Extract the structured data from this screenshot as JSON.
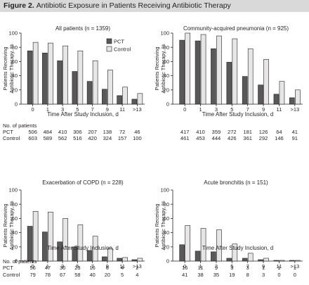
{
  "figure": {
    "label": "Figure 2.",
    "title": "Antibiotic Exposure in Patients Receiving Antibiotic Therapy"
  },
  "colors": {
    "pct": "#595959",
    "control": "#e6e6e6",
    "axis": "#231f20",
    "title_bar": "#d9d9d9"
  },
  "chart_data": [
    {
      "type": "bar",
      "title": "All patients (n = 1359)",
      "ylabel": "Patients Receiving Antibiotic Therapy, %",
      "xlabel": "Time After Study Inclusion, d",
      "categories": [
        "0",
        "1",
        "3",
        "5",
        "7",
        "9",
        "11",
        ">13"
      ],
      "ylim": [
        0,
        100
      ],
      "yticks": [
        "0",
        "20",
        "40",
        "60",
        "80",
        "100"
      ],
      "legend": {
        "placement": "top-right",
        "entries": [
          "PCT",
          "Control"
        ]
      },
      "series": [
        {
          "name": "PCT",
          "values": [
            75,
            72,
            61,
            46,
            32,
            21,
            12,
            7
          ]
        },
        {
          "name": "Control",
          "values": [
            87,
            86,
            82,
            75,
            61,
            48,
            24,
            15
          ]
        }
      ],
      "patients_label": "No. of patients",
      "patients": [
        {
          "group": "PCT",
          "counts": [
            "506",
            "484",
            "410",
            "306",
            "207",
            "138",
            "72",
            "46"
          ]
        },
        {
          "group": "Control",
          "counts": [
            "603",
            "589",
            "562",
            "516",
            "420",
            "324",
            "157",
            "100"
          ]
        }
      ]
    },
    {
      "type": "bar",
      "title": "Community-acquired pneumonia (n = 925)",
      "ylabel": "Patients Receiving Antibiotic Therapy, %",
      "xlabel": "Time After Study Inclusion, d",
      "categories": [
        "0",
        "1",
        "3",
        "5",
        "7",
        "9",
        "11",
        ">13"
      ],
      "ylim": [
        0,
        100
      ],
      "yticks": [
        "0",
        "20",
        "40",
        "60",
        "80",
        "100"
      ],
      "series": [
        {
          "name": "PCT",
          "values": [
            90,
            89,
            78,
            59,
            39,
            27,
            14,
            9
          ]
        },
        {
          "name": "Control",
          "values": [
            100,
            98,
            96,
            92,
            78,
            63,
            32,
            20
          ]
        }
      ],
      "patients_label": "",
      "patients": [
        {
          "group": "PCT",
          "counts": [
            "417",
            "410",
            "359",
            "272",
            "181",
            "126",
            "64",
            "41"
          ]
        },
        {
          "group": "Control",
          "counts": [
            "461",
            "453",
            "444",
            "426",
            "361",
            "292",
            "146",
            "91"
          ]
        }
      ]
    },
    {
      "type": "bar",
      "title": "Exacerbation of COPD (n = 228)",
      "ylabel": "Patients Receiving Antibiotic Therapy, %",
      "xlabel": "Time After Study Inclusion, d",
      "categories": [
        "0",
        "1",
        "3",
        "5",
        "7",
        "9",
        "11",
        ">13"
      ],
      "ylim": [
        0,
        100
      ],
      "yticks": [
        "0",
        "20",
        "40",
        "60",
        "80",
        "100"
      ],
      "series": [
        {
          "name": "PCT",
          "values": [
            49,
            41,
            27,
            20,
            15,
            6,
            4,
            2
          ]
        },
        {
          "name": "Control",
          "values": [
            70,
            69,
            60,
            51,
            35,
            18,
            5,
            4
          ]
        }
      ],
      "patients_label": "No. of patients",
      "patients": [
        {
          "group": "PCT",
          "counts": [
            "56",
            "47",
            "30",
            "23",
            "16",
            "6",
            "4",
            "2"
          ]
        },
        {
          "group": "Control",
          "counts": [
            "79",
            "78",
            "67",
            "58",
            "40",
            "20",
            "5",
            "4"
          ]
        }
      ]
    },
    {
      "type": "bar",
      "title": "Acute bronchitis (n = 151)",
      "ylabel": "Patients Receiving Antibiotic Therapy, %",
      "xlabel": "Time After Study Inclusion, d",
      "categories": [
        "0",
        "1",
        "3",
        "5",
        "7",
        "9",
        "11",
        ">13"
      ],
      "ylim": [
        0,
        100
      ],
      "yticks": [
        "0",
        "20",
        "40",
        "60",
        "80",
        "100"
      ],
      "series": [
        {
          "name": "PCT",
          "values": [
            23,
            14,
            13,
            4,
            4,
            2,
            1,
            1
          ]
        },
        {
          "name": "Control",
          "values": [
            50,
            46,
            44,
            24,
            11,
            4,
            1,
            1
          ]
        }
      ],
      "patients_label": "",
      "patients": [
        {
          "group": "PCT",
          "counts": [
            "16",
            "11",
            "9",
            "3",
            "3",
            "1",
            "1",
            "1"
          ]
        },
        {
          "group": "Control",
          "counts": [
            "41",
            "38",
            "35",
            "19",
            "8",
            "3",
            "0",
            "0"
          ]
        }
      ]
    }
  ]
}
